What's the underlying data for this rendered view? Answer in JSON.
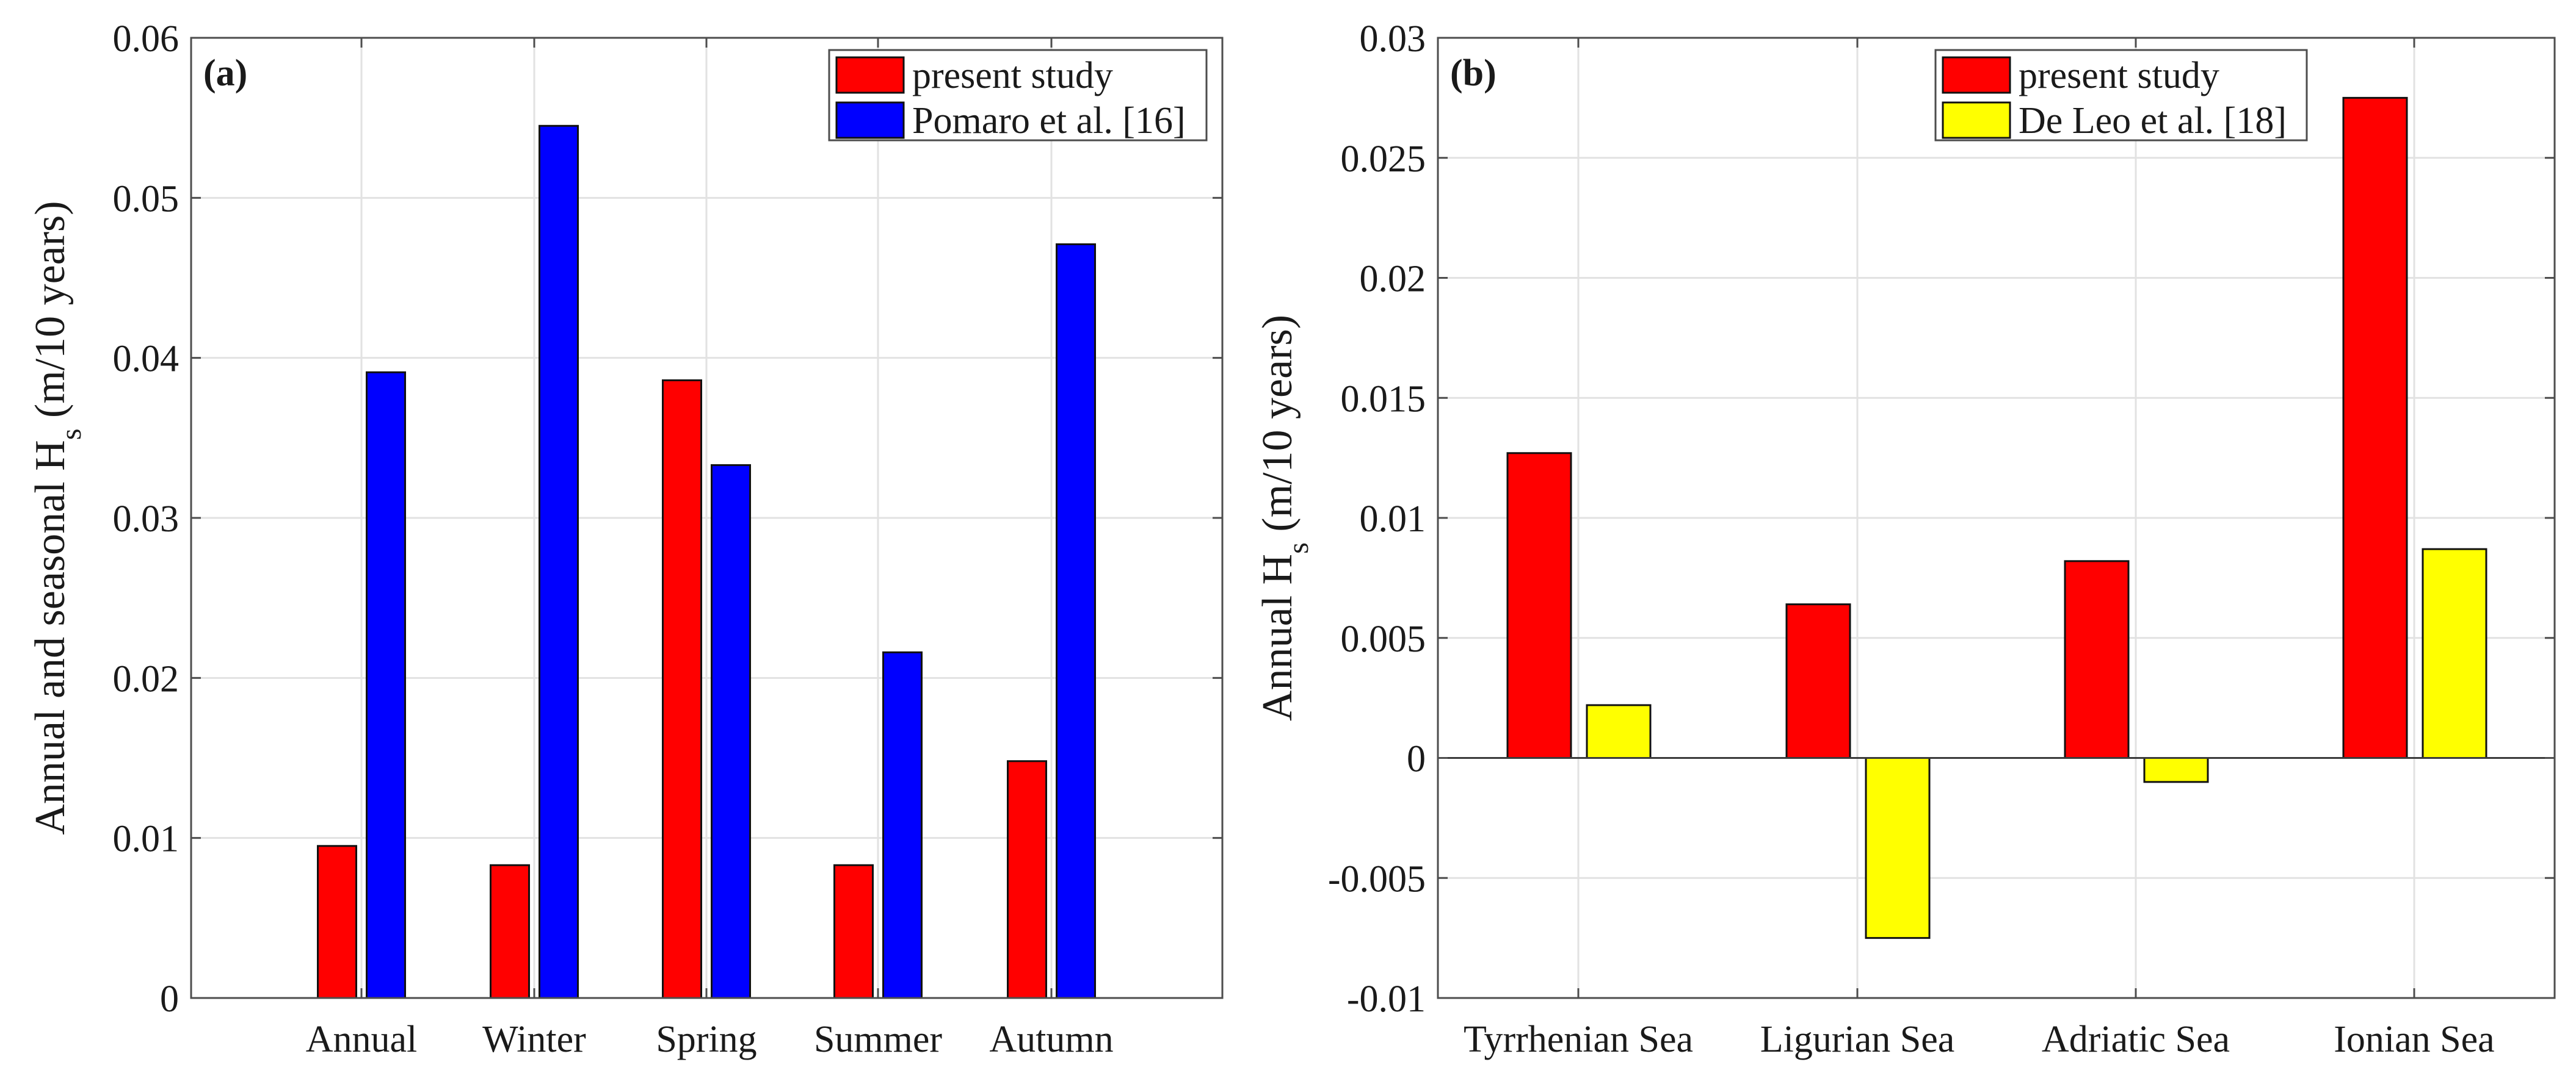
{
  "chart_data": [
    {
      "type": "bar",
      "panel_label": "(a)",
      "ylabel_main": "Annual and seasonal H",
      "ylabel_sub": "s",
      "ylabel_tail": " (m/10 years)",
      "categories": [
        "Annual",
        "Winter",
        "Spring",
        "Summer",
        "Autumn"
      ],
      "series": [
        {
          "name": "present study",
          "color": "#ff0000",
          "values": [
            0.0095,
            0.0083,
            0.0386,
            0.0083,
            0.0148
          ]
        },
        {
          "name": "Pomaro et al. [16]",
          "color": "#0000ff",
          "values": [
            0.0391,
            0.0545,
            0.0333,
            0.0216,
            0.0471
          ]
        }
      ],
      "ylim": [
        0,
        0.06
      ],
      "yticks": [
        0,
        0.01,
        0.02,
        0.03,
        0.04,
        0.05,
        0.06
      ],
      "ytick_labels": [
        "0",
        "0.01",
        "0.02",
        "0.03",
        "0.04",
        "0.05",
        "0.06"
      ],
      "grid": true,
      "legend": "top-right"
    },
    {
      "type": "bar",
      "panel_label": "(b)",
      "ylabel_main": "Annual H",
      "ylabel_sub": "s",
      "ylabel_tail": " (m/10 years)",
      "categories": [
        "Tyrrhenian Sea",
        "Ligurian Sea",
        "Adriatic Sea",
        "Ionian Sea"
      ],
      "series": [
        {
          "name": "present study",
          "color": "#ff0000",
          "values": [
            0.0127,
            0.0064,
            0.0082,
            0.0275
          ]
        },
        {
          "name": "De Leo et al. [18]",
          "color": "#ffff00",
          "values": [
            0.0022,
            -0.0075,
            -0.001,
            0.0087
          ]
        }
      ],
      "ylim": [
        -0.01,
        0.03
      ],
      "yticks": [
        -0.01,
        -0.005,
        0,
        0.005,
        0.01,
        0.015,
        0.02,
        0.025,
        0.03
      ],
      "ytick_labels": [
        "-0.01",
        "-0.005",
        "0",
        "0.005",
        "0.01",
        "0.015",
        "0.02",
        "0.025",
        "0.03"
      ],
      "grid": true,
      "legend": "top-right"
    }
  ]
}
